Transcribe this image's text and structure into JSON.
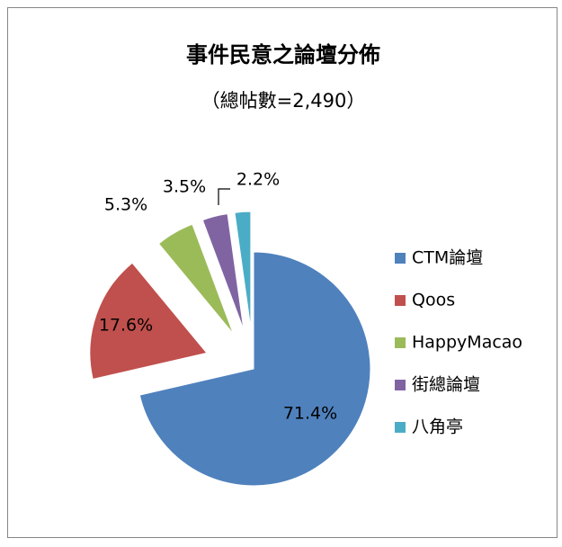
{
  "chart_data": {
    "type": "pie",
    "title": "事件民意之論壇分佈",
    "subtitle": "（總帖數=2,490）",
    "categories": [
      "CTM論壇",
      "Qoos",
      "HappyMacao",
      "街總論壇",
      "八角亭"
    ],
    "values": [
      71.4,
      17.6,
      5.3,
      3.5,
      2.2
    ],
    "value_labels": [
      "71.4%",
      "17.6%",
      "5.3%",
      "3.5%",
      "2.2%"
    ],
    "colors": [
      "#4f81bd",
      "#c0504d",
      "#9bbb59",
      "#8064a2",
      "#4bacc6"
    ],
    "legend": "right"
  }
}
